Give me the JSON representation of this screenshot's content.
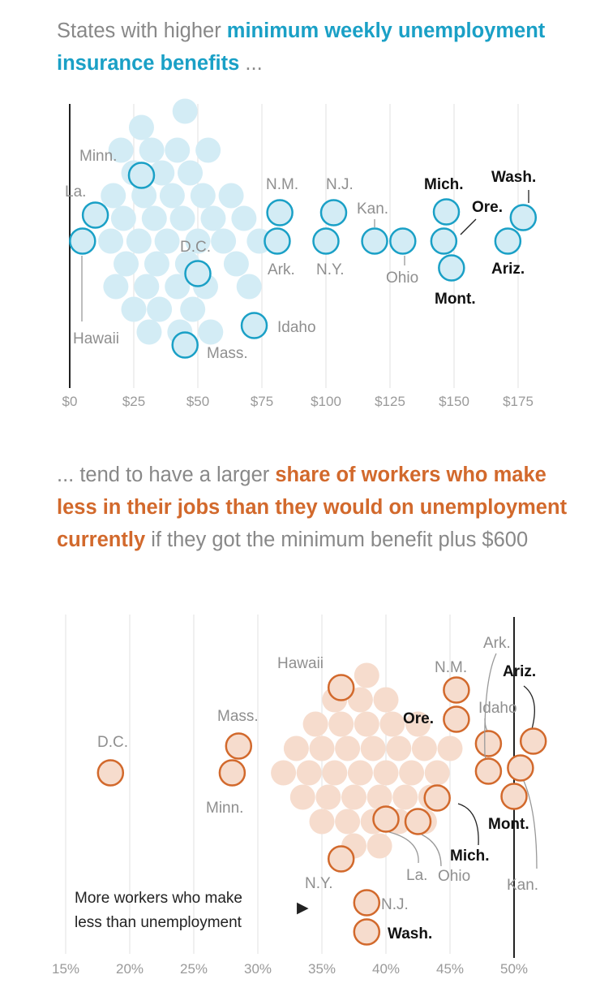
{
  "headline_1": {
    "prefix": "States with higher ",
    "highlight": "minimum weekly unemployment insurance benefits",
    "suffix": " ..."
  },
  "headline_2": {
    "prefix": "... tend to have a larger ",
    "highlight": "share of workers who make less in their jobs than they would on unemployment currently",
    "suffix": " if they got the minimum benefit plus $600"
  },
  "annotation": {
    "line1": "More workers who make",
    "line2": "less than unemployment",
    "arrow": "▶"
  },
  "colors": {
    "blue_stroke": "#1aa0c6",
    "blue_fill": "#d3ecf5",
    "orange_stroke": "#d2692c",
    "orange_fill": "#f6dccd"
  },
  "chart_data": [
    {
      "type": "beeswarm",
      "title": "Minimum weekly unemployment insurance benefit",
      "xlabel": "",
      "xlim": [
        0,
        185
      ],
      "x_ticks": [
        0,
        25,
        50,
        75,
        100,
        125,
        150,
        175
      ],
      "x_tick_labels": [
        "$0",
        "$25",
        "$50",
        "$75",
        "$100",
        "$125",
        "$150",
        "$175"
      ],
      "highlighted": [
        {
          "state": "La.",
          "value": 10
        },
        {
          "state": "Hawaii",
          "value": 5
        },
        {
          "state": "Minn.",
          "value": 28
        },
        {
          "state": "D.C.",
          "value": 50
        },
        {
          "state": "Mass.",
          "value": 45
        },
        {
          "state": "Idaho",
          "value": 72
        },
        {
          "state": "N.M.",
          "value": 82
        },
        {
          "state": "Ark.",
          "value": 81
        },
        {
          "state": "N.J.",
          "value": 103
        },
        {
          "state": "N.Y.",
          "value": 100
        },
        {
          "state": "Kan.",
          "value": 119
        },
        {
          "state": "Ohio",
          "value": 130
        },
        {
          "state": "Mich.",
          "value": 147
        },
        {
          "state": "Ore.",
          "value": 146
        },
        {
          "state": "Mont.",
          "value": 149
        },
        {
          "state": "Wash.",
          "value": 177
        },
        {
          "state": "Ariz.",
          "value": 171
        }
      ],
      "other_states": [
        16,
        17,
        18,
        20,
        21,
        22,
        25,
        25,
        27,
        28,
        29,
        30,
        31,
        32,
        33,
        34,
        35,
        36,
        38,
        40,
        42,
        42,
        43,
        44,
        45,
        46,
        47,
        48,
        50,
        52,
        53,
        54,
        55,
        56,
        60,
        63,
        65,
        68,
        70,
        74
      ]
    },
    {
      "type": "beeswarm",
      "title": "Share of workers who make less than minimum benefit plus $600",
      "xlabel": "",
      "xlim": [
        14,
        54
      ],
      "x_ticks": [
        15,
        20,
        25,
        30,
        35,
        40,
        45,
        50
      ],
      "x_tick_labels": [
        "15%",
        "20%",
        "25%",
        "30%",
        "35%",
        "40%",
        "45%",
        "50%"
      ],
      "marker_line": 50,
      "highlighted": [
        {
          "state": "D.C.",
          "value": 18.5
        },
        {
          "state": "Mass.",
          "value": 28.5
        },
        {
          "state": "Minn.",
          "value": 28
        },
        {
          "state": "Hawaii",
          "value": 36.5
        },
        {
          "state": "N.Y.",
          "value": 36.5
        },
        {
          "state": "N.J.",
          "value": 38.5
        },
        {
          "state": "Wash.",
          "value": 38.5
        },
        {
          "state": "La.",
          "value": 40
        },
        {
          "state": "Ohio",
          "value": 42.5
        },
        {
          "state": "Mich.",
          "value": 44
        },
        {
          "state": "N.M.",
          "value": 45.5
        },
        {
          "state": "Ore.",
          "value": 45.5
        },
        {
          "state": "Idaho",
          "value": 48
        },
        {
          "state": "Mont.",
          "value": 50
        },
        {
          "state": "Ark.",
          "value": 48
        },
        {
          "state": "Ariz.",
          "value": 51.5
        },
        {
          "state": "Kan.",
          "value": 50.5
        }
      ],
      "other_states": [
        32,
        33,
        33.5,
        34,
        34.5,
        35,
        35,
        35.5,
        36,
        36,
        36.5,
        37,
        37,
        37.5,
        37.5,
        38,
        38,
        38.5,
        38.5,
        39,
        39,
        39.5,
        39.5,
        40,
        40,
        40.5,
        41,
        41,
        41.5,
        42,
        42.5,
        43,
        43,
        43.5,
        44,
        45
      ]
    }
  ]
}
